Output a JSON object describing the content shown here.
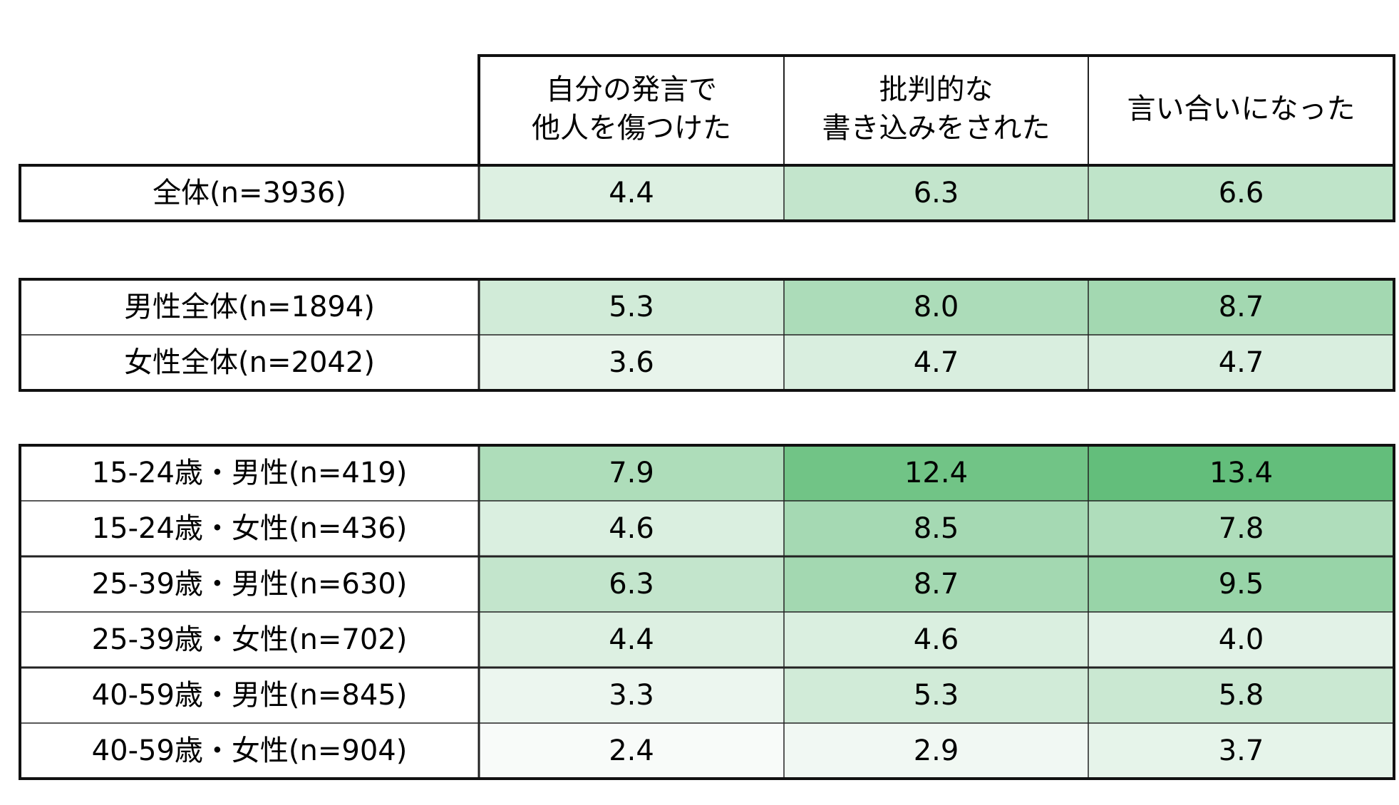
{
  "table": {
    "columns": [
      [
        "自分の発言で",
        "他人を傷つけた"
      ],
      [
        "批判的な",
        "書き込みをされた"
      ],
      [
        "言い合いになった"
      ]
    ],
    "groups": [
      [
        {
          "label": "全体(n=3936)",
          "values": [
            "4.4",
            "6.3",
            "6.6"
          ]
        }
      ],
      [
        {
          "label": "男性全体(n=1894)",
          "values": [
            "5.3",
            "8.0",
            "8.7"
          ]
        },
        {
          "label": "女性全体(n=2042)",
          "values": [
            "3.6",
            "4.7",
            "4.7"
          ]
        }
      ],
      [
        {
          "label": "15-24歳・男性(n=419)",
          "values": [
            "7.9",
            "12.4",
            "13.4"
          ]
        },
        {
          "label": "15-24歳・女性(n=436)",
          "values": [
            "4.6",
            "8.5",
            "7.8"
          ]
        },
        {
          "label": "25-39歳・男性(n=630)",
          "values": [
            "6.3",
            "8.7",
            "9.5"
          ]
        },
        {
          "label": "25-39歳・女性(n=702)",
          "values": [
            "4.4",
            "4.6",
            "4.0"
          ]
        },
        {
          "label": "40-59歳・男性(n=845)",
          "values": [
            "3.3",
            "5.3",
            "5.8"
          ]
        },
        {
          "label": "40-59歳・女性(n=904)",
          "values": [
            "2.4",
            "2.9",
            "3.7"
          ]
        }
      ]
    ]
  }
}
